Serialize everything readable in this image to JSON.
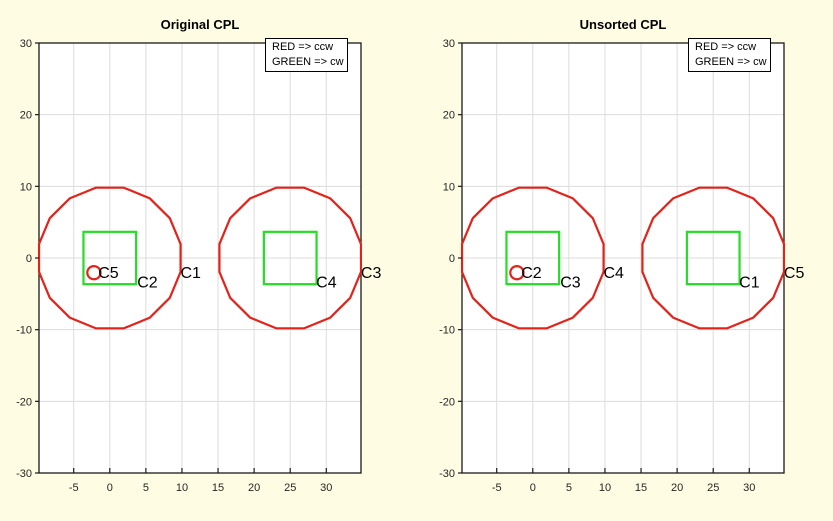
{
  "figure": {
    "background": "#fefce2",
    "plot_background": "#ffffff",
    "axis_color": "#1a1a1a",
    "grid_color": "#dcdcdc",
    "tick_label_color": "#262626",
    "red": "#e3231a",
    "green": "#25dd25",
    "label_color": "#000000"
  },
  "chart_data": [
    {
      "type": "line",
      "title": "Original CPL",
      "legend_lines": [
        "RED => ccw",
        "GREEN => cw"
      ],
      "legend_position": "top-right-inside",
      "grid": true,
      "xlim": [
        -9.81,
        34.81
      ],
      "ylim": [
        -30,
        30
      ],
      "xticks": [
        -5,
        0,
        5,
        10,
        15,
        20,
        25,
        30
      ],
      "yticks": [
        30,
        20,
        10,
        0,
        -10,
        -20,
        -30
      ],
      "red_polygons_ccw": [
        {
          "name": "outer-circle-1",
          "center": [
            0,
            0
          ],
          "radius": 10,
          "n_sides": 16
        },
        {
          "name": "outer-circle-2",
          "center": [
            25,
            0
          ],
          "radius": 10,
          "n_sides": 16
        },
        {
          "name": "small-circle",
          "center": [
            -2.2,
            -2.05
          ],
          "radius": 0.92,
          "n_sides": 24
        }
      ],
      "green_squares_cw": [
        {
          "name": "inner-square-1",
          "center": [
            0,
            0
          ],
          "half_size": 3.65
        },
        {
          "name": "inner-square-2",
          "center": [
            25,
            0
          ],
          "half_size": 3.65
        }
      ],
      "contour_labels": [
        {
          "text": "C5",
          "x": -1.6,
          "y": -2.05
        },
        {
          "text": "C2",
          "x": 3.8,
          "y": -3.35
        },
        {
          "text": "C1",
          "x": 9.8,
          "y": -2.05
        },
        {
          "text": "C4",
          "x": 28.6,
          "y": -3.35
        },
        {
          "text": "C3",
          "x": 34.8,
          "y": -2.05
        }
      ]
    },
    {
      "type": "line",
      "title": "Unsorted CPL",
      "legend_lines": [
        "RED => ccw",
        "GREEN => cw"
      ],
      "legend_position": "top-right-inside",
      "grid": true,
      "xlim": [
        -9.81,
        34.81
      ],
      "ylim": [
        -30,
        30
      ],
      "xticks": [
        -5,
        0,
        5,
        10,
        15,
        20,
        25,
        30
      ],
      "yticks": [
        30,
        20,
        10,
        0,
        -10,
        -20,
        -30
      ],
      "red_polygons_ccw": [
        {
          "name": "outer-circle-1",
          "center": [
            0,
            0
          ],
          "radius": 10,
          "n_sides": 16
        },
        {
          "name": "outer-circle-2",
          "center": [
            25,
            0
          ],
          "radius": 10,
          "n_sides": 16
        },
        {
          "name": "small-circle",
          "center": [
            -2.2,
            -2.05
          ],
          "radius": 0.92,
          "n_sides": 24
        }
      ],
      "green_squares_cw": [
        {
          "name": "inner-square-1",
          "center": [
            0,
            0
          ],
          "half_size": 3.65
        },
        {
          "name": "inner-square-2",
          "center": [
            25,
            0
          ],
          "half_size": 3.65
        }
      ],
      "contour_labels": [
        {
          "text": "C2",
          "x": -1.6,
          "y": -2.05
        },
        {
          "text": "C3",
          "x": 3.8,
          "y": -3.35
        },
        {
          "text": "C4",
          "x": 9.8,
          "y": -2.05
        },
        {
          "text": "C1",
          "x": 28.6,
          "y": -3.35
        },
        {
          "text": "C5",
          "x": 34.8,
          "y": -2.05
        }
      ]
    }
  ]
}
